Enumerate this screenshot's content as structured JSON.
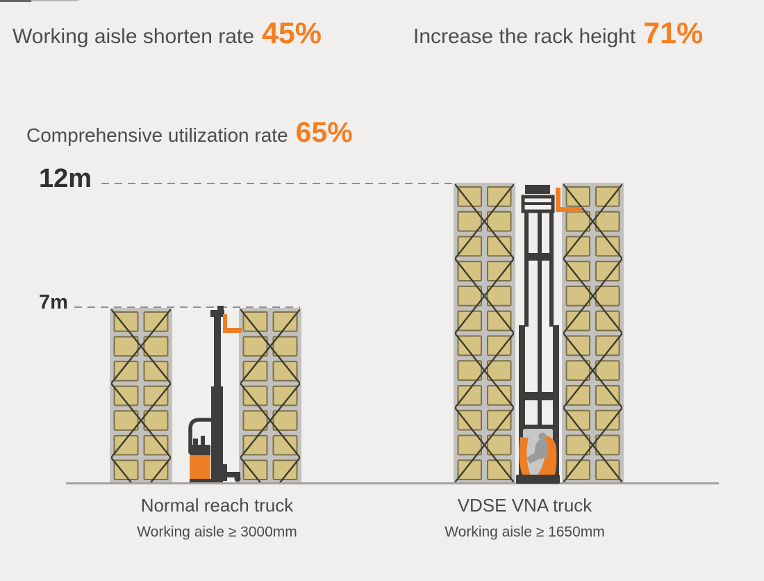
{
  "stats": {
    "aisle_rate": {
      "label": "Working aisle shorten rate",
      "value": "45%"
    },
    "rack_height": {
      "label": "Increase the rack height",
      "value": "71%"
    },
    "utilization": {
      "label": "Comprehensive utilization rate",
      "value": "65%"
    }
  },
  "diagram": {
    "height_markers": {
      "tall": "12m",
      "short": "7m"
    },
    "left": {
      "truck_name": "Normal reach truck",
      "aisle_note": "Working aisle ≥ 3000mm",
      "rack_rows": 7
    },
    "right": {
      "truck_name": "VDSE VNA truck",
      "aisle_note": "Working aisle ≥ 1650mm",
      "rack_rows": 12
    }
  },
  "colors": {
    "background": "#f0efee",
    "accent_orange": "#f57e1e",
    "heading_text": "#4d4d4d",
    "label_text": "#303030",
    "caption_text": "#4a4a4a",
    "box_fill": "#d5c384",
    "box_border": "#7d7147",
    "rack_frame": "#c2c1bf",
    "brace": "#3e3b29",
    "truck_dark": "#3d3d3d",
    "truck_orange": "#ee7e25",
    "operator_gray": "#9b9b9b",
    "cab_interior": "#c7c7c7",
    "ground": "#a2a2a2",
    "dashed_line": "#8f8f8f"
  }
}
